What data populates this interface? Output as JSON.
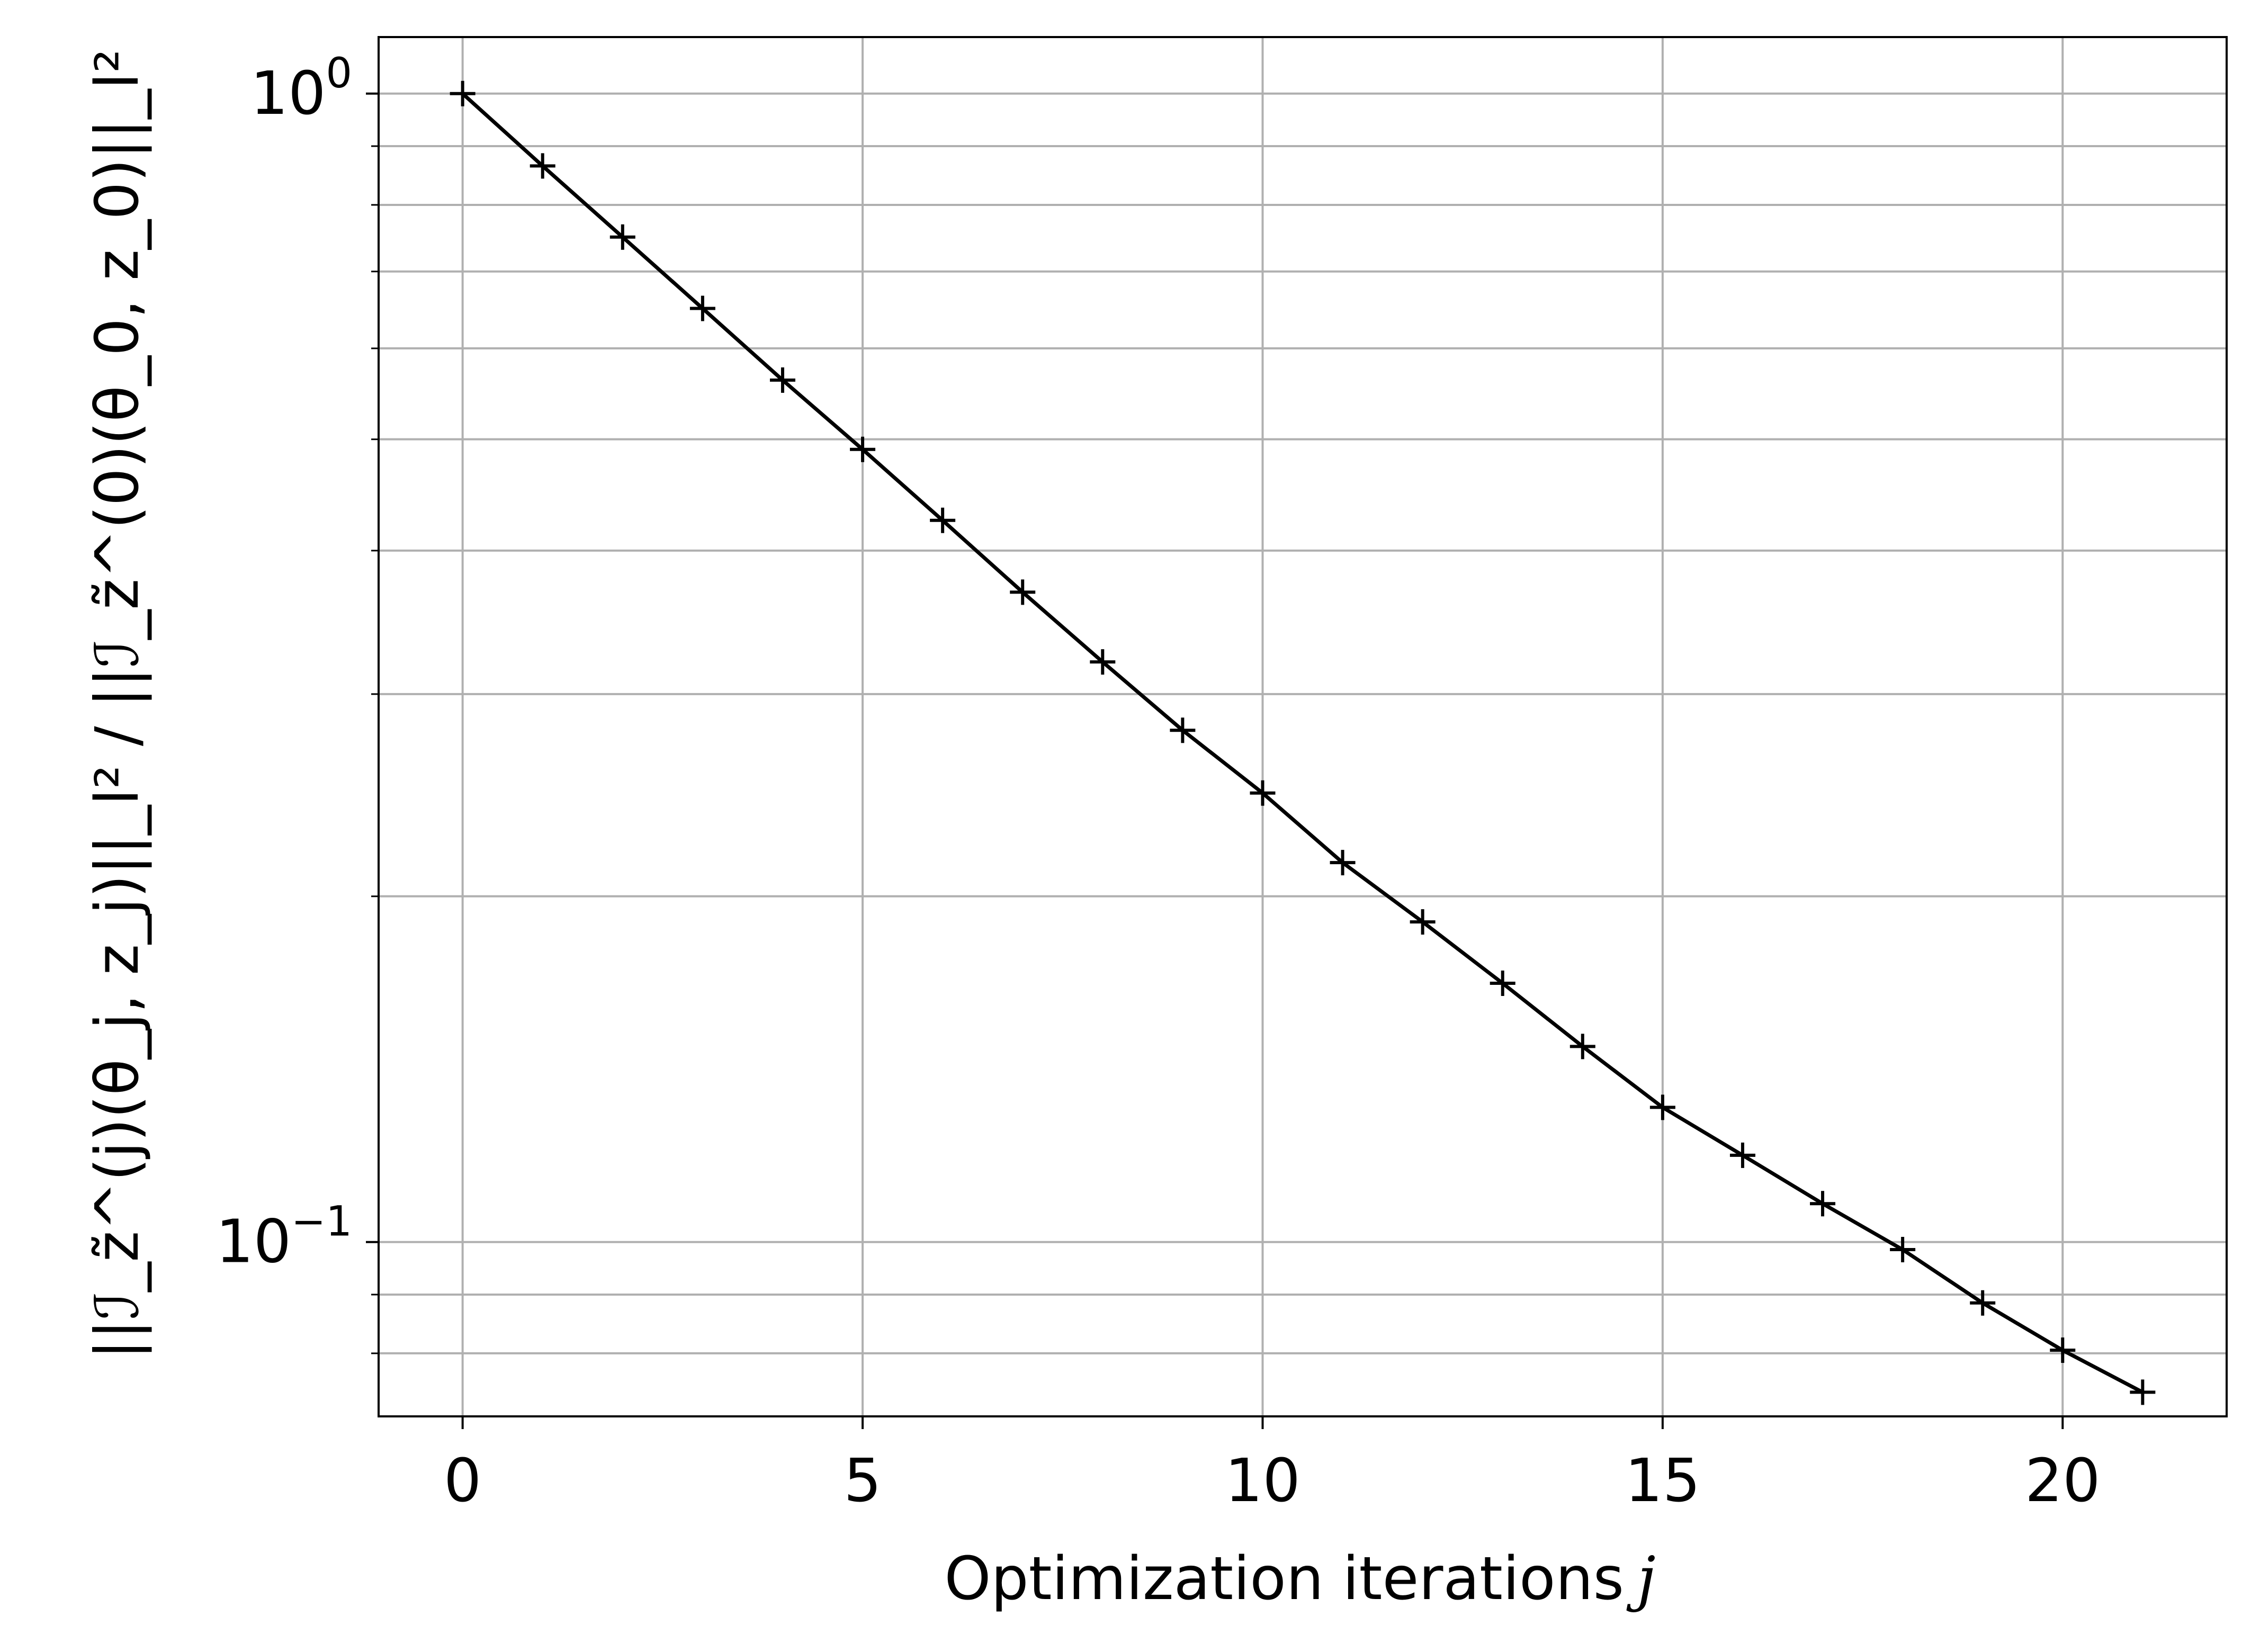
{
  "chart_data": {
    "type": "line",
    "title": "",
    "xlabel": "Optimization iterations",
    "xlabel_var": "j",
    "ylabel": "||ℐ_z̃^(j)(θ_j, z_j)||_l² / ||ℐ_z̃^(0)(θ_0, z_0)||_l²",
    "xlim": [
      -1.05,
      22.05
    ],
    "ylim": [
      0.0705,
      1.12
    ],
    "yscale": "log",
    "grid": true,
    "x_ticks": [
      0,
      5,
      10,
      15,
      20
    ],
    "x_tick_labels": [
      "0",
      "5",
      "10",
      "15",
      "20"
    ],
    "y_ticks": [
      0.1,
      1.0
    ],
    "y_tick_bases": [
      "10",
      "10"
    ],
    "y_tick_exponents": [
      "−1",
      "0"
    ],
    "marker": "+",
    "color": "#000000",
    "series": [
      {
        "x": [
          0,
          1,
          2,
          3,
          4,
          5,
          6,
          7,
          8,
          9,
          10,
          11,
          12,
          13,
          14,
          15,
          16,
          17,
          18,
          19,
          20,
          21
        ],
        "y": [
          1.0,
          0.865,
          0.75,
          0.65,
          0.563,
          0.49,
          0.425,
          0.368,
          0.32,
          0.279,
          0.246,
          0.214,
          0.19,
          0.168,
          0.148,
          0.131,
          0.119,
          0.108,
          0.0985,
          0.0885,
          0.0805,
          0.074
        ]
      }
    ]
  }
}
